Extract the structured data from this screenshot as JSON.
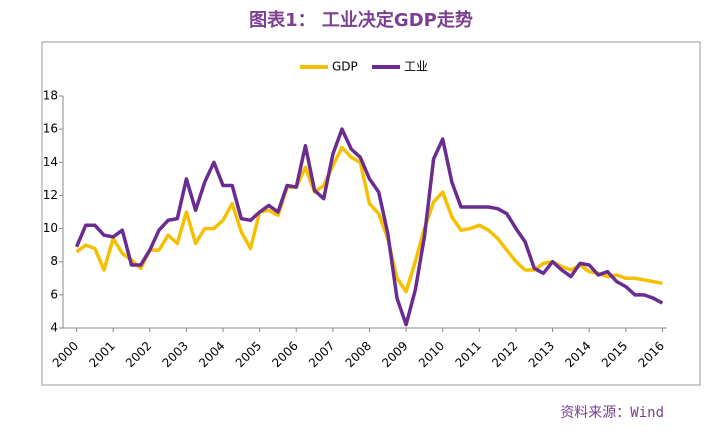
{
  "chart_data": {
    "type": "line",
    "title": "图表1：  工业决定GDP走势",
    "source": "资料来源：Wind",
    "categories": [
      "2000",
      null,
      null,
      null,
      "2001",
      null,
      null,
      null,
      "2002",
      null,
      null,
      null,
      "2003",
      null,
      null,
      null,
      "2004",
      null,
      null,
      null,
      "2005",
      null,
      null,
      null,
      "2006",
      null,
      null,
      null,
      "2007",
      null,
      null,
      null,
      "2008",
      null,
      null,
      null,
      "2009",
      null,
      null,
      null,
      "2010",
      null,
      null,
      null,
      "2011",
      null,
      null,
      null,
      "2012",
      null,
      null,
      null,
      "2013",
      null,
      null,
      null,
      "2014",
      null,
      null,
      null,
      "2015",
      null,
      null,
      null,
      "2016"
    ],
    "series": [
      {
        "name": "GDP",
        "color": "#f5c000",
        "values": [
          8.6,
          9.0,
          8.8,
          7.5,
          9.4,
          8.5,
          8.1,
          7.6,
          8.7,
          8.7,
          9.6,
          9.1,
          11.0,
          9.1,
          10.0,
          10.0,
          10.5,
          11.5,
          9.8,
          8.8,
          11.0,
          11.1,
          10.8,
          12.5,
          12.5,
          13.7,
          12.2,
          12.6,
          13.8,
          14.9,
          14.3,
          14.0,
          11.5,
          10.9,
          9.4,
          7.0,
          6.2,
          8.0,
          10.0,
          11.6,
          12.2,
          10.7,
          9.9,
          10.0,
          10.2,
          9.9,
          9.4,
          8.7,
          8.0,
          7.5,
          7.5,
          7.9,
          8.0,
          7.7,
          7.5,
          7.8,
          7.4,
          7.3,
          7.1,
          7.2,
          7.0,
          7.0,
          6.9,
          6.8,
          6.7
        ]
      },
      {
        "name": "工业",
        "color": "#6a2c91",
        "values": [
          8.9,
          10.2,
          10.2,
          9.6,
          9.5,
          9.9,
          7.8,
          7.8,
          8.7,
          9.9,
          10.5,
          10.6,
          13.0,
          11.1,
          12.8,
          14.0,
          12.6,
          12.6,
          10.6,
          10.5,
          11.0,
          11.4,
          11.0,
          12.6,
          12.5,
          15.0,
          12.3,
          11.8,
          14.5,
          16.0,
          14.8,
          14.3,
          13.0,
          12.2,
          9.7,
          5.8,
          4.2,
          6.3,
          9.5,
          14.2,
          15.4,
          12.8,
          11.3,
          11.3,
          11.3,
          11.3,
          11.2,
          10.9,
          10.0,
          9.2,
          7.6,
          7.3,
          8.0,
          7.5,
          7.1,
          7.9,
          7.8,
          7.2,
          7.4,
          6.8,
          6.5,
          6.0,
          6.0,
          5.8,
          5.5
        ]
      }
    ],
    "ylim": [
      4,
      18
    ],
    "yticks": [
      4,
      6,
      8,
      10,
      12,
      14,
      16,
      18
    ],
    "legend": "top"
  }
}
